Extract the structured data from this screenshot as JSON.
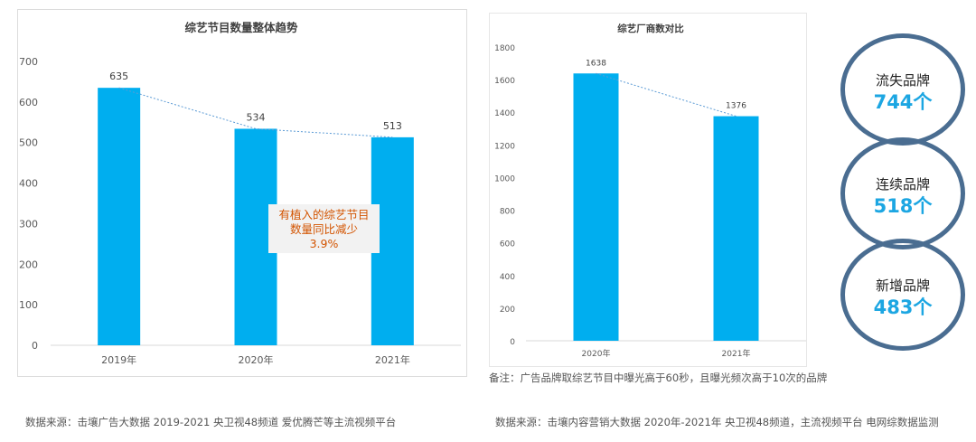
{
  "chart_data": [
    {
      "type": "bar",
      "title": "综艺节目数量整体趋势",
      "categories": [
        "2019年",
        "2020年",
        "2021年"
      ],
      "values": [
        635,
        534,
        513
      ],
      "ylim": [
        0,
        700
      ],
      "yticks": [
        "0",
        "100",
        "200",
        "300",
        "400",
        "500",
        "600",
        "700"
      ],
      "grid": false,
      "trendline": true,
      "bar_color": "#00aeef",
      "annotation": [
        "有植入的综艺节目",
        "数量同比减少",
        "3.9%"
      ]
    },
    {
      "type": "bar",
      "title": "综艺厂商数对比",
      "categories": [
        "2020年",
        "2021年"
      ],
      "values": [
        1638,
        1376
      ],
      "ylim": [
        0,
        1800
      ],
      "yticks": [
        "0",
        "200",
        "400",
        "600",
        "800",
        "1000",
        "1200",
        "1400",
        "1600",
        "1800"
      ],
      "grid": false,
      "trendline": true,
      "bar_color": "#00aeef"
    }
  ],
  "brand_stats": [
    {
      "label": "流失品牌",
      "value": "744个"
    },
    {
      "label": "连续品牌",
      "value": "518个"
    },
    {
      "label": "新增品牌",
      "value": "483个"
    }
  ],
  "note": "备注：广告品牌取综艺节目中曝光高于60秒，且曝光频次高于10次的品牌",
  "footer_left": "数据来源：击壤广告大数据 2019-2021 央卫视48频道 爱优腾芒等主流视频平台",
  "footer_right": "数据来源：击壤内容营销大数据 2020年-2021年 央卫视48频道，主流视频平台 电网综数据监测"
}
